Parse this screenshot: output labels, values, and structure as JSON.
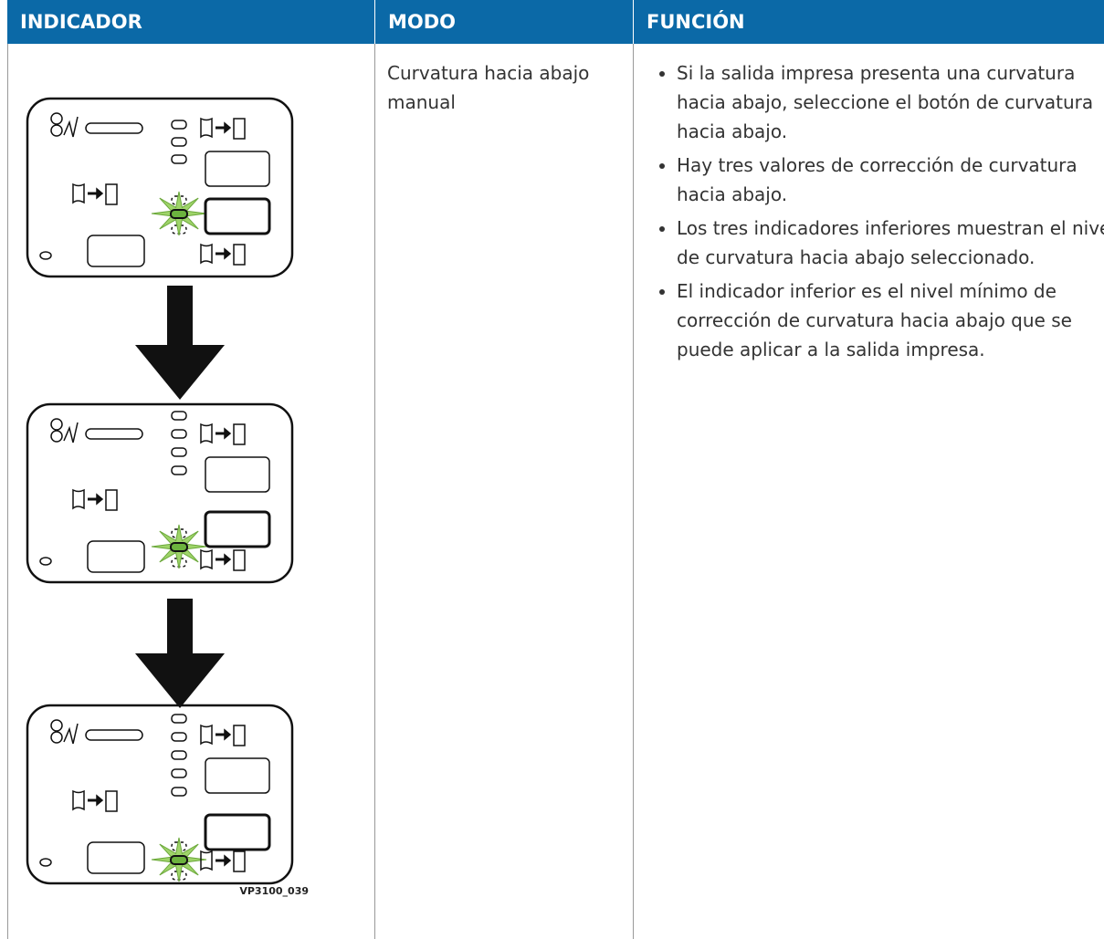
{
  "table": {
    "headers": [
      "INDICADOR",
      "MODO",
      "FUNCIÓN"
    ],
    "rows": [
      {
        "mode": "Curvatura hacia abajo manual",
        "function": [
          "Si la salida impresa presenta una curvatura hacia abajo, seleccione el botón de curvatura hacia abajo.",
          "Hay tres valores de corrección de curvatura hacia abajo.",
          "Los tres indicadores inferiores muestran el nivel de curvatura hacia abajo seleccionado.",
          "El indicador inferior es el nivel mínimo de corrección de curvatura hacia abajo que se puede aplicar a la salida impresa."
        ],
        "figure_id": "VP3100_039"
      }
    ]
  }
}
